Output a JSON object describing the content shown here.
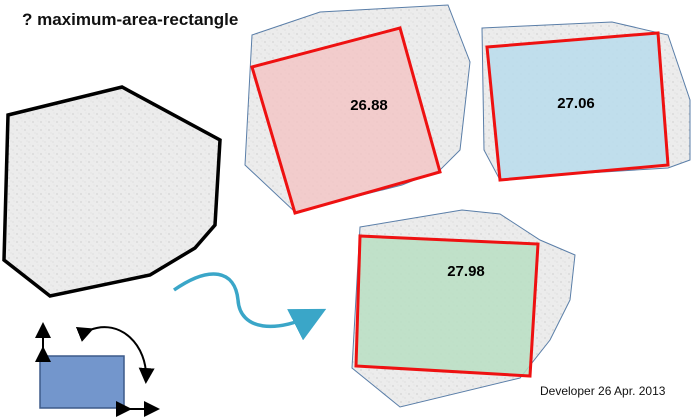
{
  "title": "? maximum-area-rectangle",
  "credit": "Developer 26 Apr. 2013",
  "results": [
    {
      "area_label": "26.88",
      "fill": "#f4c2c2"
    },
    {
      "area_label": "27.06",
      "fill": "#b9dcec"
    },
    {
      "area_label": "27.98",
      "fill": "#b9dfc3"
    }
  ],
  "colors": {
    "polygon_fill": "#ececec",
    "source_outline": "#000000",
    "hull_outline": "#5a7ea8",
    "rectangle_stroke": "#ee1111",
    "arrow": "#3aa6c8",
    "legend_rect": "#7396cc",
    "legend_rect_stroke": "#3d5a8a"
  },
  "icons": [
    "curved-arrow-icon",
    "rotate-arrow-icon",
    "vertical-resize-arrow-icon",
    "horizontal-resize-arrow-icon"
  ]
}
